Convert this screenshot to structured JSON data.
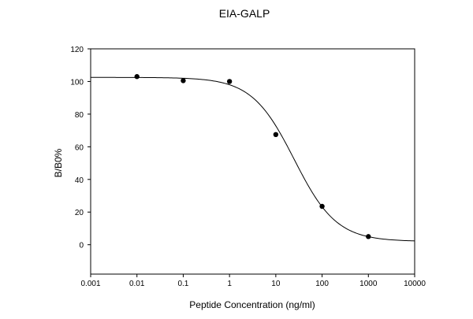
{
  "chart_data": {
    "type": "scatter",
    "title": "EIA-GALP",
    "xlabel": "Peptide Concentration (ng/ml)",
    "ylabel": "B/B0%",
    "xscale": "log",
    "xlim": [
      0.001,
      10000
    ],
    "ylim": [
      -18,
      120
    ],
    "xticks": [
      0.001,
      0.01,
      0.1,
      1,
      10,
      100,
      1000,
      10000
    ],
    "xtick_labels": [
      "0.001",
      "0.01",
      "0.1",
      "1",
      "10",
      "100",
      "1000",
      "10000"
    ],
    "yticks": [
      0,
      20,
      40,
      60,
      80,
      100,
      120
    ],
    "ytick_labels": [
      "0",
      "20",
      "40",
      "60",
      "80",
      "100",
      "120"
    ],
    "grid": false,
    "series": [
      {
        "name": "data",
        "type": "scatter",
        "x": [
          0.01,
          0.1,
          1,
          10,
          100,
          1000
        ],
        "y": [
          103,
          100.5,
          100,
          67.5,
          23.5,
          5
        ]
      },
      {
        "name": "fit",
        "type": "line",
        "model": "4PL",
        "top": 102.5,
        "bottom": 2,
        "ec50": 25,
        "hill": 0.95
      }
    ]
  }
}
